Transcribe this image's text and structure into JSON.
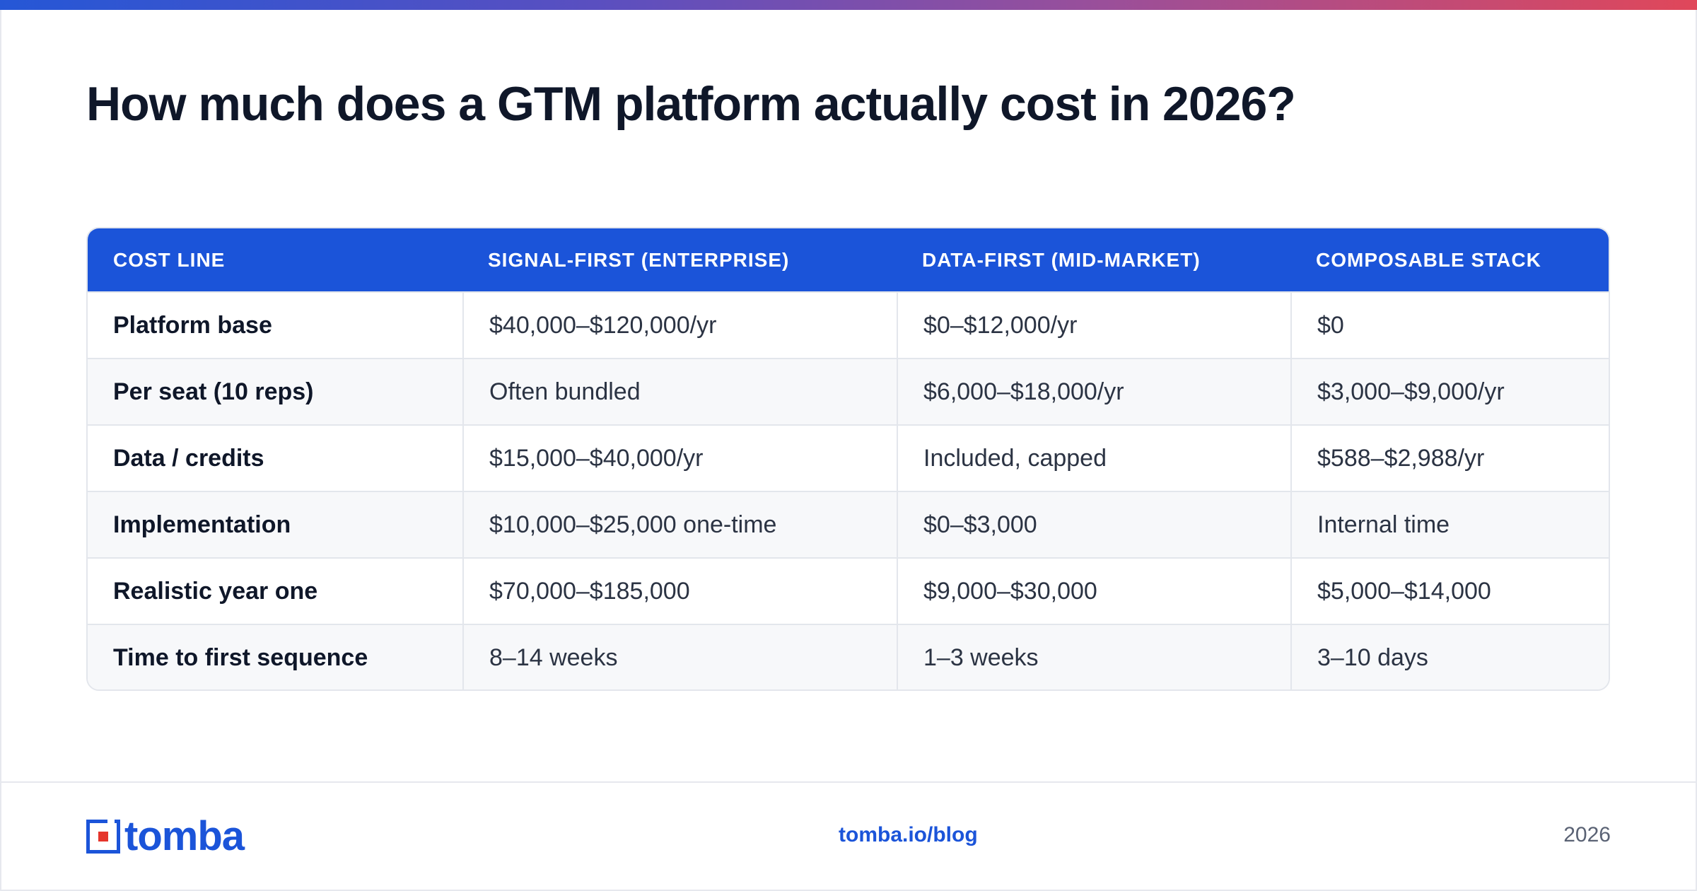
{
  "title": "How much does a GTM platform actually cost in 2026?",
  "table": {
    "headers": [
      "COST LINE",
      "SIGNAL-FIRST (ENTERPRISE)",
      "DATA-FIRST (MID-MARKET)",
      "COMPOSABLE STACK"
    ],
    "rows": [
      {
        "label": "Platform base",
        "signal": "$40,000–$120,000/yr",
        "data": "$0–$12,000/yr",
        "composable": "$0"
      },
      {
        "label": "Per seat (10 reps)",
        "signal": "Often bundled",
        "data": "$6,000–$18,000/yr",
        "composable": "$3,000–$9,000/yr"
      },
      {
        "label": "Data / credits",
        "signal": "$15,000–$40,000/yr",
        "data": "Included, capped",
        "composable": "$588–$2,988/yr"
      },
      {
        "label": "Implementation",
        "signal": "$10,000–$25,000 one-time",
        "data": "$0–$3,000",
        "composable": "Internal time"
      },
      {
        "label": "Realistic year one",
        "signal": "$70,000–$185,000",
        "data": "$9,000–$30,000",
        "composable": "$5,000–$14,000"
      },
      {
        "label": "Time to first sequence",
        "signal": "8–14 weeks",
        "data": "1–3 weeks",
        "composable": "3–10 days"
      }
    ]
  },
  "footer": {
    "logo_text": "tomba",
    "link": "tomba.io/blog",
    "year": "2026"
  },
  "colors": {
    "accent": "#1b54d9",
    "logo_red": "#e5352b",
    "header_bg": "#1b54d9"
  }
}
